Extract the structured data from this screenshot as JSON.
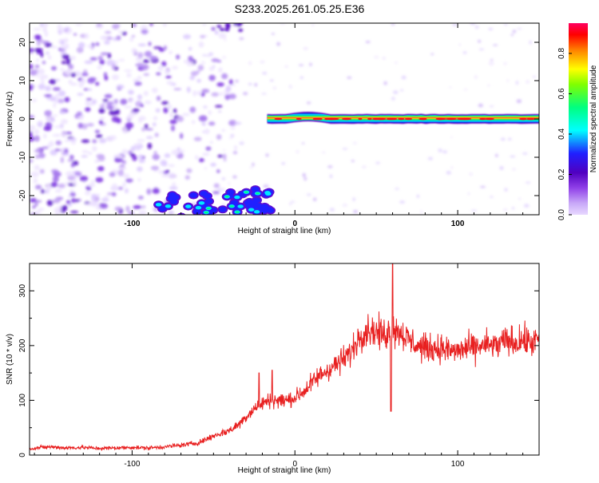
{
  "title": "S233.2025.261.05.25.E36",
  "colorbar": {
    "label": "Normalized spectral amplitude",
    "ticks": [
      "0.0",
      "0.2",
      "0.4",
      "0.6",
      "0.8"
    ],
    "tick_values": [
      0.0,
      0.2,
      0.4,
      0.6,
      0.8
    ],
    "range": [
      0,
      0.95
    ],
    "colors": [
      "#e8d8ff",
      "#c8a8f8",
      "#9040e8",
      "#5000c0",
      "#2020ff",
      "#00ffff",
      "#00ff80",
      "#ffff00",
      "#ff8000",
      "#ff0000",
      "#ff0060"
    ]
  },
  "chart_data": [
    {
      "type": "heatmap",
      "title": "S233.2025.261.05.25.E36",
      "xlabel": "Height of straight line (km)",
      "ylabel": "Frequency (Hz)",
      "xlim": [
        -163,
        150
      ],
      "ylim": [
        -25,
        25
      ],
      "xticks": [
        "-100",
        "0",
        "100"
      ],
      "xtick_values": [
        -100,
        0,
        100
      ],
      "yticks": [
        "20",
        "10",
        "0",
        "-10",
        "-20"
      ],
      "ytick_values": [
        20,
        10,
        0,
        -10,
        -20
      ],
      "features": [
        {
          "label": "band",
          "x_range": [
            -17,
            150
          ],
          "frequency_hz": 0,
          "amplitude": 0.85
        },
        {
          "label": "cluster",
          "x_range": [
            -85,
            -15
          ],
          "frequency_hz_range": [
            -25,
            -18
          ],
          "amplitude": 0.4
        },
        {
          "label": "background",
          "x_range": [
            -163,
            -55
          ],
          "frequency_hz_range": [
            -25,
            25
          ],
          "amplitude": 0.05
        }
      ]
    },
    {
      "type": "line",
      "xlabel": "Height of straight line (km)",
      "ylabel": "SNR (10 * v/v)",
      "xlim": [
        -163,
        150
      ],
      "ylim": [
        0,
        350
      ],
      "xticks": [
        "-100",
        "0",
        "100"
      ],
      "xtick_values": [
        -100,
        0,
        100
      ],
      "yticks": [
        "0",
        "100",
        "200",
        "300"
      ],
      "ytick_values": [
        0,
        100,
        200,
        300
      ],
      "color": "#e82020",
      "series": [
        {
          "x": [
            -163,
            -150,
            -140,
            -130,
            -120,
            -110,
            -100,
            -90,
            -80,
            -70,
            -60,
            -55,
            -50,
            -45,
            -40,
            -35,
            -30,
            -25,
            -20,
            -15,
            -10,
            -5,
            0,
            5,
            10,
            15,
            20,
            25,
            30,
            35,
            40,
            45,
            50,
            55,
            60,
            65,
            70,
            75,
            80,
            85,
            90,
            95,
            100,
            105,
            110,
            115,
            120,
            125,
            130,
            135,
            140,
            145,
            150
          ],
          "values": [
            12,
            15,
            13,
            14,
            12,
            13,
            14,
            13,
            15,
            18,
            22,
            28,
            35,
            40,
            45,
            55,
            70,
            85,
            95,
            100,
            100,
            100,
            105,
            115,
            130,
            145,
            155,
            165,
            175,
            190,
            220,
            230,
            225,
            220,
            230,
            225,
            210,
            200,
            195,
            195,
            195,
            190,
            190,
            195,
            195,
            200,
            200,
            200,
            210,
            205,
            210,
            205,
            210
          ]
        }
      ]
    }
  ]
}
